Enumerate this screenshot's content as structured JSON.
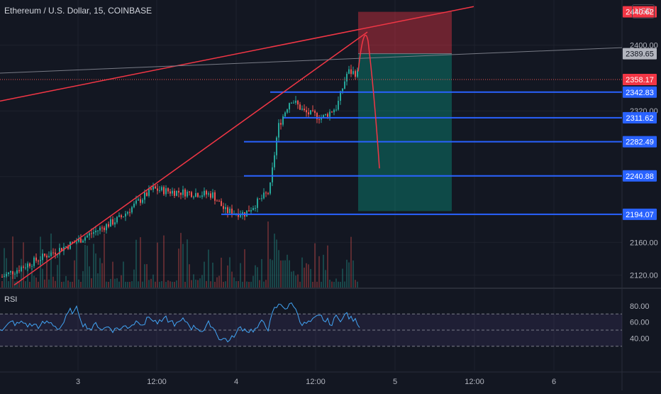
{
  "header": {
    "title": "Ethereum / U.S. Dollar, 15, COINBASE",
    "currency": "USD"
  },
  "rsi_label": "RSI",
  "colors": {
    "background": "#131722",
    "grid": "#1e222d",
    "up": "#26a69a",
    "down": "#ef5350",
    "level": "#2962ff",
    "trend": "#f23645",
    "stop_zone": "#f2364566",
    "target_zone": "#08998166"
  },
  "chart_data": {
    "type": "candlestick",
    "price_axis": {
      "min": 2105,
      "max": 2455,
      "ticks": [
        "2400.00",
        "2320.00",
        "2160.00",
        "2120.00"
      ]
    },
    "time_axis": {
      "ticks": [
        "3",
        "12:00",
        "4",
        "12:00",
        "5",
        "12:00",
        "6"
      ]
    },
    "price_labels": [
      {
        "value": 2440.62,
        "text": "2440.62",
        "kind": "stop"
      },
      {
        "value": 2389.65,
        "text": "2389.65",
        "kind": "gray"
      },
      {
        "value": 2358.17,
        "text": "2358.17",
        "kind": "last"
      },
      {
        "value": 2342.83,
        "text": "2342.83",
        "kind": "level"
      },
      {
        "value": 2311.62,
        "text": "2311.62",
        "kind": "level"
      },
      {
        "value": 2282.49,
        "text": "2282.49",
        "kind": "level"
      },
      {
        "value": 2240.88,
        "text": "2240.88",
        "kind": "level"
      },
      {
        "value": 2194.07,
        "text": "2194.07",
        "kind": "level"
      }
    ],
    "short_position": {
      "entry": 2389.65,
      "stop": 2440.62,
      "target": 2198.0
    },
    "rsi_axis": {
      "ticks": [
        "80.00",
        "60.00",
        "40.00"
      ]
    },
    "rsi_levels": [
      70,
      50,
      30
    ]
  }
}
